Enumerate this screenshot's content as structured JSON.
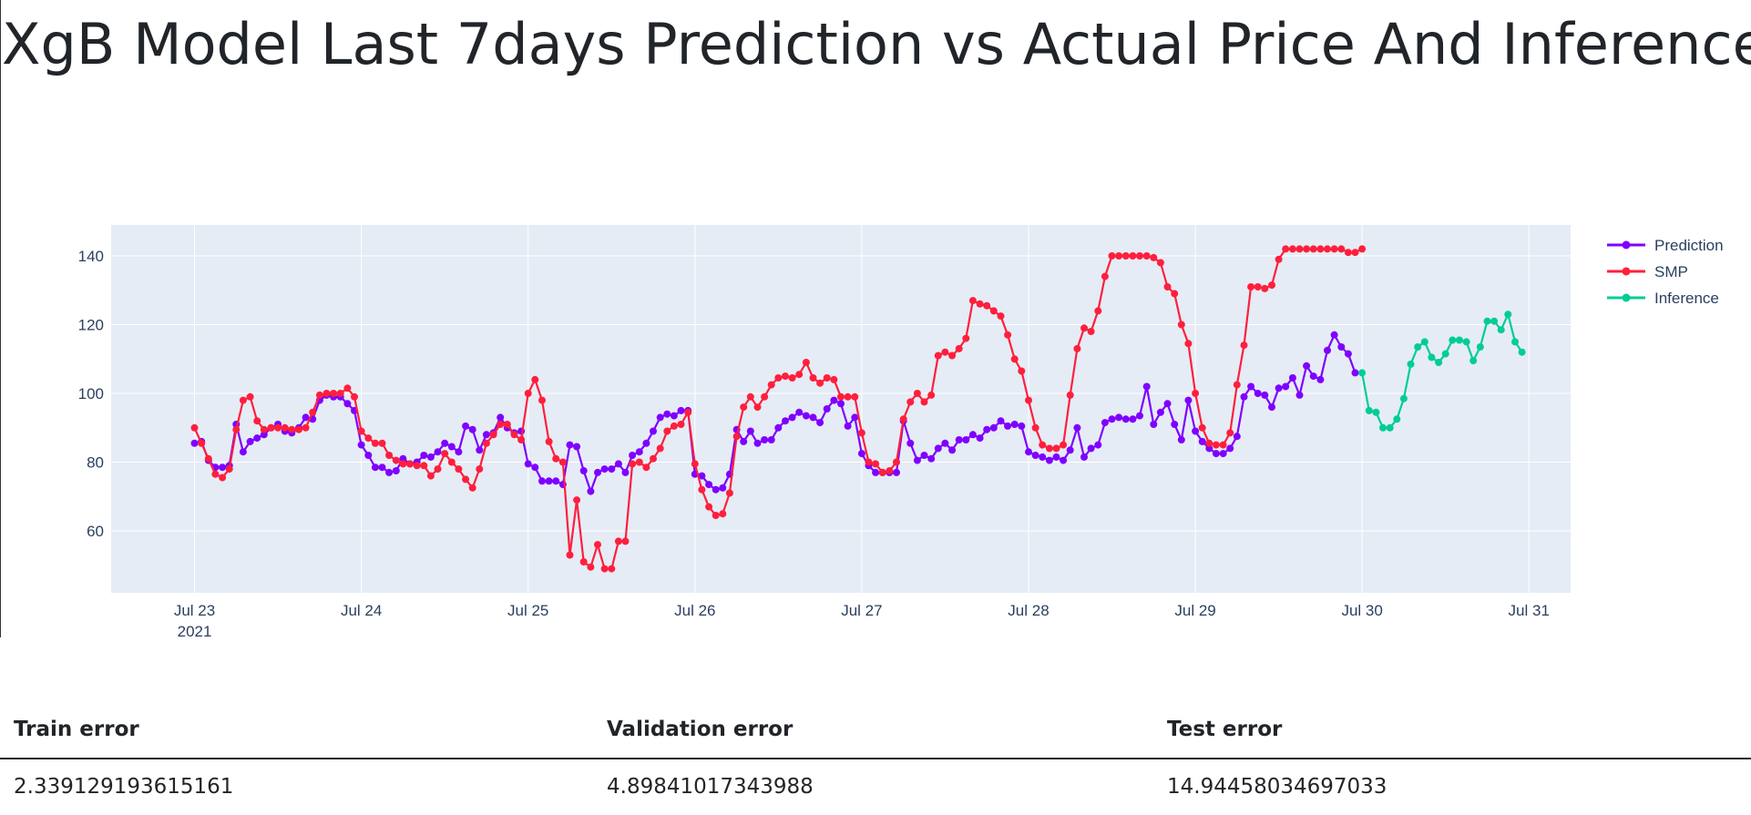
{
  "page": {
    "title": "XgB Model Last 7days Prediction vs Actual Price And Inference"
  },
  "chart_data": {
    "type": "line",
    "markers": true,
    "x_type": "datetime",
    "x_start": "2021-07-23 00:00",
    "x_step_hours": 1,
    "xlim": [
      "2021-07-22 12:00",
      "2021-07-31 06:00"
    ],
    "ylim": [
      42,
      149
    ],
    "y_ticks": [
      60,
      80,
      100,
      120,
      140
    ],
    "x_ticks": [
      {
        "date": "2021-07-23",
        "label": "Jul 23",
        "sublabel": "2021"
      },
      {
        "date": "2021-07-24",
        "label": "Jul 24"
      },
      {
        "date": "2021-07-25",
        "label": "Jul 25"
      },
      {
        "date": "2021-07-26",
        "label": "Jul 26"
      },
      {
        "date": "2021-07-27",
        "label": "Jul 27"
      },
      {
        "date": "2021-07-28",
        "label": "Jul 28"
      },
      {
        "date": "2021-07-29",
        "label": "Jul 29"
      },
      {
        "date": "2021-07-30",
        "label": "Jul 30"
      },
      {
        "date": "2021-07-31",
        "label": "Jul 31"
      }
    ],
    "grid": true,
    "legend_position": "top-right",
    "colors": {
      "plot_bg": "#e5ecf6",
      "grid": "#ffffff",
      "tick_text": "#2a3f5f"
    },
    "series": [
      {
        "name": "Prediction",
        "color": "#7f00ff",
        "start": "2021-07-23 00:00",
        "values": [
          85.5,
          86,
          80.5,
          78.5,
          78.5,
          79,
          91,
          83,
          86,
          87,
          88,
          90,
          91,
          89,
          88.5,
          90,
          93,
          92.5,
          98,
          99.5,
          99,
          99,
          97,
          95,
          85,
          82,
          78.5,
          78.5,
          77,
          77.5,
          81,
          79.5,
          80,
          82,
          81.5,
          83,
          85.5,
          84.5,
          83,
          90.5,
          89.5,
          83.5,
          88,
          88.5,
          93,
          90,
          88.5,
          89,
          79.5,
          78.5,
          74.5,
          74.5,
          74.5,
          73.5,
          85,
          84.5,
          77.5,
          71.5,
          77,
          78,
          78,
          79.5,
          77,
          82,
          83,
          85.5,
          89,
          93,
          94,
          93.5,
          95,
          95,
          76.5,
          76,
          73.5,
          72,
          72.5,
          76.5,
          89.5,
          86,
          89,
          85.5,
          86.5,
          86.5,
          90,
          92,
          93,
          94.5,
          93.5,
          93,
          91.5,
          95.5,
          98,
          97,
          90.5,
          93,
          82.5,
          79,
          77,
          77,
          77,
          77,
          92,
          85.5,
          80.5,
          82,
          81,
          84,
          85.5,
          83.5,
          86.5,
          86.5,
          88,
          87,
          89.5,
          90,
          92,
          90.5,
          91,
          90.5,
          83,
          82,
          81.5,
          80.5,
          81.5,
          80.5,
          83.5,
          90,
          81.5,
          84,
          85,
          91.5,
          92.5,
          93,
          92.5,
          92.5,
          93.5,
          102,
          91,
          94.5,
          97,
          91,
          86.5,
          98,
          89,
          86,
          84,
          82.5,
          82.5,
          84,
          87.5,
          99,
          102,
          100,
          99.5,
          96,
          101.5,
          102,
          104.5,
          99.5,
          108,
          105,
          104,
          112.5,
          117,
          113.5,
          111.5,
          106
        ]
      },
      {
        "name": "SMP",
        "color": "#ff1f3d",
        "start": "2021-07-23 00:00",
        "values": [
          90,
          85.5,
          81,
          76.5,
          75.5,
          78,
          89.5,
          98,
          99,
          92,
          89.5,
          90,
          90,
          90,
          89.5,
          89.5,
          90,
          94.5,
          99.5,
          100,
          100,
          100,
          101.5,
          99,
          89,
          87,
          85.5,
          85.5,
          82,
          80.5,
          79.5,
          79.5,
          79,
          79,
          76,
          78,
          82.5,
          80,
          78,
          75,
          72.5,
          78,
          85.5,
          88,
          91,
          91,
          88,
          86.5,
          100,
          104,
          98,
          86,
          81,
          80,
          53,
          69,
          51,
          49.5,
          56,
          49,
          49,
          57,
          57,
          79.5,
          80,
          78.5,
          81,
          84,
          89,
          90.5,
          91,
          94.5,
          79.5,
          72,
          67,
          64.5,
          65,
          71,
          87.5,
          96,
          99,
          96,
          99,
          102.5,
          104.5,
          105,
          104.5,
          105.5,
          109,
          104.5,
          103,
          104.5,
          104,
          99,
          99,
          99,
          88.5,
          80,
          79.5,
          77,
          77.5,
          80,
          92.5,
          97.5,
          100,
          97.5,
          99.5,
          111,
          112,
          111,
          113,
          116,
          127,
          126,
          125.5,
          124,
          122.5,
          117,
          110,
          106.5,
          98,
          90,
          85,
          84,
          84,
          85,
          99.5,
          113,
          119,
          118,
          124,
          134,
          140,
          140,
          140,
          140,
          140,
          140,
          139.5,
          138,
          131,
          129,
          120,
          114.5,
          100,
          90,
          85.5,
          85,
          85,
          88.5,
          102.5,
          114,
          131,
          131,
          130.5,
          131.5,
          139,
          142,
          142,
          142,
          142,
          142,
          142,
          142,
          142,
          142,
          141,
          141,
          142
        ]
      },
      {
        "name": "Inference",
        "color": "#00cc96",
        "start": "2021-07-30 00:00",
        "values": [
          106,
          95,
          94.5,
          90,
          90,
          92.5,
          98.5,
          108.5,
          113.5,
          115,
          110.5,
          109,
          111.5,
          115.5,
          115.5,
          115,
          109.5,
          113.5,
          121,
          121,
          118.5,
          123,
          115,
          112
        ]
      }
    ]
  },
  "errors": {
    "headers": {
      "train": "Train error",
      "validation": "Validation error",
      "test": "Test error"
    },
    "values": {
      "train": "2.339129193615161",
      "validation": "4.89841017343988",
      "test": "14.94458034697033"
    }
  }
}
